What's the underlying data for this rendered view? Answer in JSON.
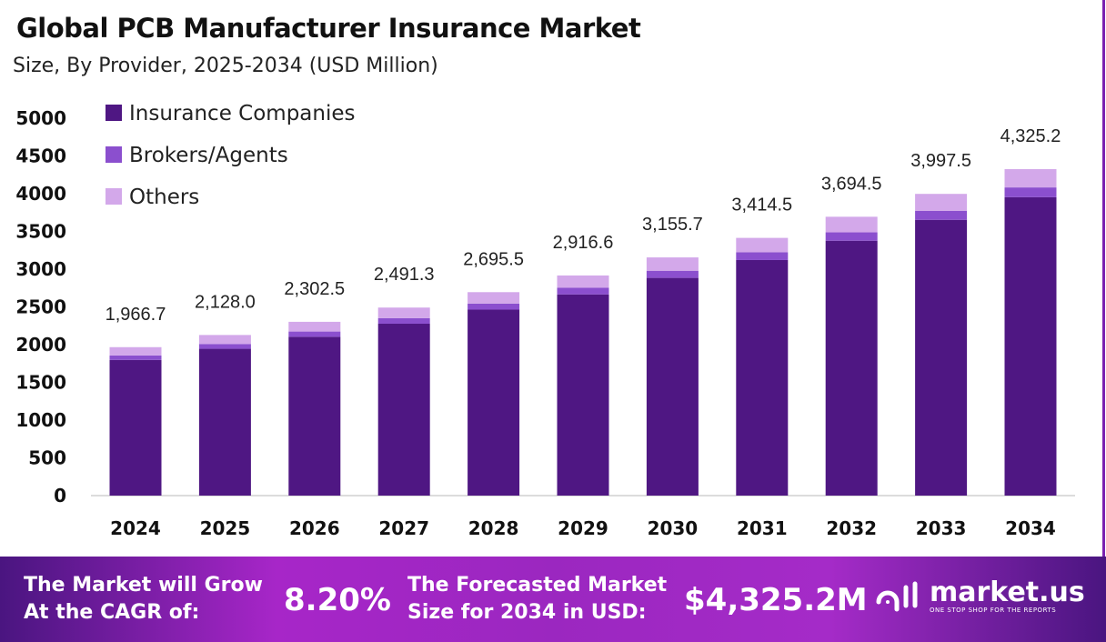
{
  "title": "Global PCB Manufacturer  Insurance Market",
  "subtitle": "Size, By Provider, 2025-2034 (USD Million)",
  "chart_data": {
    "type": "stacked-bar",
    "categories": [
      "2024",
      "2025",
      "2026",
      "2027",
      "2028",
      "2029",
      "2030",
      "2031",
      "2032",
      "2033",
      "2034"
    ],
    "series": [
      {
        "name": "Insurance Companies",
        "color": "#4f1783",
        "values": [
          1797.6,
          1945.0,
          2104.5,
          2277.0,
          2463.7,
          2665.8,
          2884.3,
          3120.9,
          3376.8,
          3653.7,
          3953.2
        ]
      },
      {
        "name": "Brokers/Agents",
        "color": "#8b4fce",
        "values": [
          59.0,
          63.8,
          69.1,
          74.7,
          80.9,
          87.5,
          94.7,
          102.4,
          110.8,
          119.9,
          129.8
        ]
      },
      {
        "name": "Others",
        "color": "#d3a8ea",
        "values": [
          110.1,
          119.2,
          128.9,
          139.6,
          150.9,
          163.3,
          176.7,
          191.2,
          206.9,
          223.9,
          242.2
        ]
      }
    ],
    "totals": [
      "1,966.7",
      "2,128.0",
      "2,302.5",
      "2,491.3",
      "2,695.5",
      "2,916.6",
      "3,155.7",
      "3,414.5",
      "3,694.5",
      "3,997.5",
      "4,325.2"
    ],
    "ylim": [
      0,
      5000
    ],
    "yticks": [
      "0",
      "500",
      "1000",
      "1500",
      "2000",
      "2500",
      "3000",
      "3500",
      "4000",
      "4500",
      "5000"
    ],
    "grid": false,
    "legend": "top-left"
  },
  "footer": {
    "cagr_label_1": "The Market will Grow",
    "cagr_label_2": "At the CAGR of:",
    "cagr_value": "8.20%",
    "forecast_label_1": "The Forecasted Market",
    "forecast_label_2": "Size for 2034 in USD:",
    "forecast_value": "$4,325.2M",
    "brand": "market.us",
    "tagline": "ONE STOP SHOP FOR THE REPORTS"
  }
}
